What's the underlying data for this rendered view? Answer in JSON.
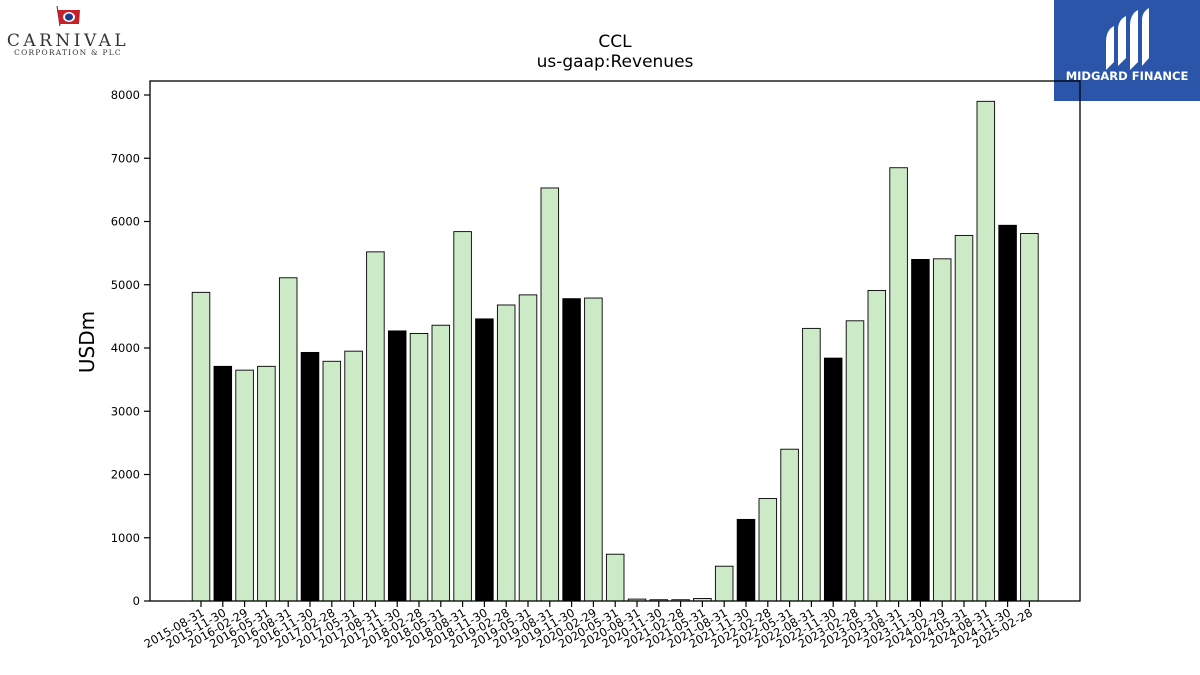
{
  "logos": {
    "left": {
      "name": "CARNIVAL",
      "subtitle": "CORPORATION & PLC"
    },
    "right": {
      "name": "MIDGARD FINANCE",
      "bg_color": "#2a55a8"
    }
  },
  "colors": {
    "fiscal_q4": "#000000",
    "other_quarters": "#cdeac7",
    "outline": "#000000"
  },
  "chart_data": {
    "type": "bar",
    "title": "CCL",
    "subtitle": "us-gaap:Revenues",
    "xlabel": "",
    "ylabel": "USDm",
    "ylim": [
      0,
      8200
    ],
    "yticks": [
      0,
      1000,
      2000,
      3000,
      4000,
      5000,
      6000,
      7000,
      8000
    ],
    "grid": false,
    "categories": [
      "2015-08-31",
      "2015-11-30",
      "2016-02-29",
      "2016-05-31",
      "2016-08-31",
      "2016-11-30",
      "2017-02-28",
      "2017-05-31",
      "2017-08-31",
      "2017-11-30",
      "2018-02-28",
      "2018-05-31",
      "2018-08-31",
      "2018-11-30",
      "2019-02-28",
      "2019-05-31",
      "2019-08-31",
      "2019-11-30",
      "2020-02-29",
      "2020-05-31",
      "2020-08-31",
      "2020-11-30",
      "2021-02-28",
      "2021-05-31",
      "2021-08-31",
      "2021-11-30",
      "2022-02-28",
      "2022-05-31",
      "2022-08-31",
      "2022-11-30",
      "2023-02-28",
      "2023-05-31",
      "2023-08-31",
      "2023-11-30",
      "2024-02-29",
      "2024-05-31",
      "2024-08-31",
      "2024-11-30",
      "2025-02-28"
    ],
    "values": [
      4880,
      3710,
      3650,
      3710,
      5110,
      3930,
      3790,
      3950,
      5520,
      4270,
      4230,
      4360,
      5840,
      4460,
      4680,
      4840,
      6530,
      4780,
      4790,
      740,
      30,
      20,
      20,
      40,
      550,
      1290,
      1620,
      2400,
      4310,
      3840,
      4430,
      4910,
      6850,
      5400,
      5410,
      5780,
      7900,
      5940,
      5810
    ],
    "highlight": [
      false,
      true,
      false,
      false,
      false,
      true,
      false,
      false,
      false,
      true,
      false,
      false,
      false,
      true,
      false,
      false,
      false,
      true,
      false,
      false,
      false,
      false,
      false,
      false,
      false,
      true,
      false,
      false,
      false,
      true,
      false,
      false,
      false,
      true,
      false,
      false,
      false,
      true,
      false
    ]
  }
}
